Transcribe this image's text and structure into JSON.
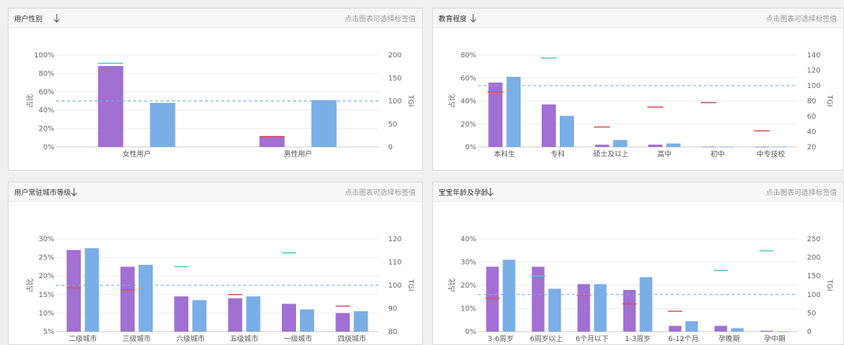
{
  "colors": {
    "bar_primary": "#a070d2",
    "bar_secondary": "#7aaee6",
    "marker_teal": "#4ecdc4",
    "marker_red": "#e05060",
    "reference_line": "#7aaee6",
    "grid": "#eeeeee"
  },
  "panels": [
    {
      "title": "用户性别",
      "hint": "点击图表可选择标签值",
      "sort_icon": "arrow-down-icon"
    },
    {
      "title": "教育程度",
      "hint": "点击图表可选择标签值",
      "sort_icon": "arrow-down-icon"
    },
    {
      "title": "用户常驻城市等级",
      "hint": "点击图表可选择标签值",
      "sort_icon": "arrow-down-icon"
    },
    {
      "title": "宝宝年龄及孕龄",
      "hint": "点击图表可选择标签值",
      "sort_icon": "arrow-down-icon"
    }
  ],
  "chart_data": [
    {
      "type": "bar",
      "title": "用户性别",
      "categories": [
        "女性用户",
        "男性用户"
      ],
      "series": [
        {
          "values": [
            88,
            12
          ]
        },
        {
          "values": [
            48,
            51
          ]
        }
      ],
      "tgi": [
        182,
        22
      ],
      "tgi_reference": 100,
      "y_left": {
        "label": "占比",
        "ticks": [
          "0%",
          "20%",
          "40%",
          "60%",
          "80%",
          "100%"
        ],
        "min": 0,
        "max": 100
      },
      "y_right": {
        "label": "TGI",
        "ticks": [
          "0",
          "50",
          "100",
          "150",
          "200"
        ],
        "min": 0,
        "max": 200
      },
      "grid": true
    },
    {
      "type": "bar",
      "title": "教育程度",
      "categories": [
        "本科生",
        "专科",
        "硕士及以上",
        "高中",
        "初中",
        "中专技校"
      ],
      "series": [
        {
          "values": [
            56,
            37,
            2,
            2,
            0.3,
            0.2
          ]
        },
        {
          "values": [
            61,
            27,
            6,
            3,
            0.2,
            0.4
          ]
        }
      ],
      "tgi": [
        92,
        136,
        46,
        72,
        78,
        41
      ],
      "tgi_reference": 100,
      "y_left": {
        "label": "占比",
        "ticks": [
          "0%",
          "20%",
          "40%",
          "60%",
          "80%"
        ],
        "min": 0,
        "max": 80
      },
      "y_right": {
        "label": "TGI",
        "ticks": [
          "20",
          "40",
          "60",
          "80",
          "100",
          "120",
          "140"
        ],
        "min": 20,
        "max": 140
      },
      "grid": true
    },
    {
      "type": "bar",
      "title": "用户常驻城市等级",
      "categories": [
        "二级城市",
        "三级城市",
        "六级城市",
        "五级城市",
        "一级城市",
        "四级城市"
      ],
      "series": [
        {
          "values": [
            27,
            22.5,
            14.5,
            14,
            12.5,
            10
          ]
        },
        {
          "values": [
            27.5,
            23,
            13.5,
            14.5,
            11,
            10.5
          ]
        }
      ],
      "tgi": [
        99,
        98,
        108,
        96,
        114,
        91
      ],
      "tgi_reference": 100,
      "y_left": {
        "label": "占比",
        "ticks": [
          "5%",
          "10%",
          "15%",
          "20%",
          "25%",
          "30%"
        ],
        "min": 5,
        "max": 30
      },
      "y_right": {
        "label": "TGI",
        "ticks": [
          "80",
          "90",
          "100",
          "110",
          "120"
        ],
        "min": 80,
        "max": 120
      },
      "grid": true
    },
    {
      "type": "bar",
      "title": "宝宝年龄及孕龄",
      "categories": [
        "3-6周岁",
        "6周岁以上",
        "6个月以下",
        "1-3周岁",
        "6-12个月",
        "孕晚期",
        "孕中期"
      ],
      "series": [
        {
          "values": [
            28,
            28,
            20.5,
            18,
            2.5,
            2.5,
            0.4
          ]
        },
        {
          "values": [
            31,
            18.5,
            20.5,
            23.5,
            4.5,
            1.5,
            0.1
          ]
        }
      ],
      "tgi": [
        90,
        150,
        98,
        75,
        55,
        165,
        218
      ],
      "tgi_reference": 100,
      "y_left": {
        "label": "占比",
        "ticks": [
          "0%",
          "10%",
          "20%",
          "30%",
          "40%"
        ],
        "min": 0,
        "max": 40
      },
      "y_right": {
        "label": "TGI",
        "ticks": [
          "0",
          "50",
          "100",
          "150",
          "200",
          "250"
        ],
        "min": 0,
        "max": 250
      },
      "grid": true
    }
  ]
}
